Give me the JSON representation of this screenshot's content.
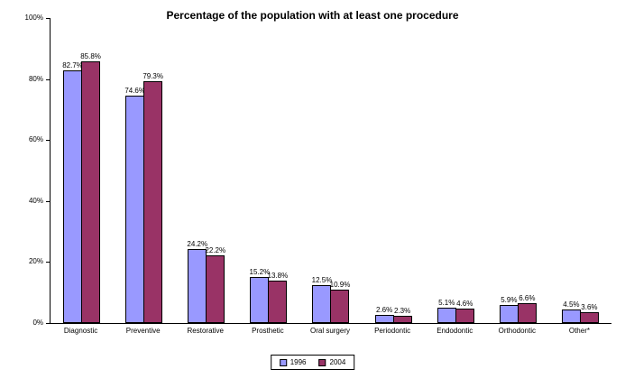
{
  "chart_data": {
    "type": "bar",
    "title": "Percentage of the population with at least one procedure",
    "categories": [
      "Diagnostic",
      "Preventive",
      "Restorative",
      "Prosthetic",
      "Oral surgery",
      "Periodontic",
      "Endodontic",
      "Orthodontic",
      "Other*"
    ],
    "series": [
      {
        "name": "1996",
        "color": "#9999ff",
        "values": [
          82.7,
          74.6,
          24.2,
          15.2,
          12.5,
          2.6,
          5.1,
          5.9,
          4.5
        ]
      },
      {
        "name": "2004",
        "color": "#993366",
        "values": [
          85.8,
          79.3,
          22.2,
          13.8,
          10.9,
          2.3,
          4.6,
          6.6,
          3.6
        ]
      }
    ],
    "ylim": [
      0,
      100
    ],
    "yticks": [
      "0%",
      "20%",
      "40%",
      "60%",
      "80%",
      "100%"
    ],
    "grid": false,
    "legend_position": "bottom",
    "value_suffix": "%",
    "data_labels": true
  }
}
